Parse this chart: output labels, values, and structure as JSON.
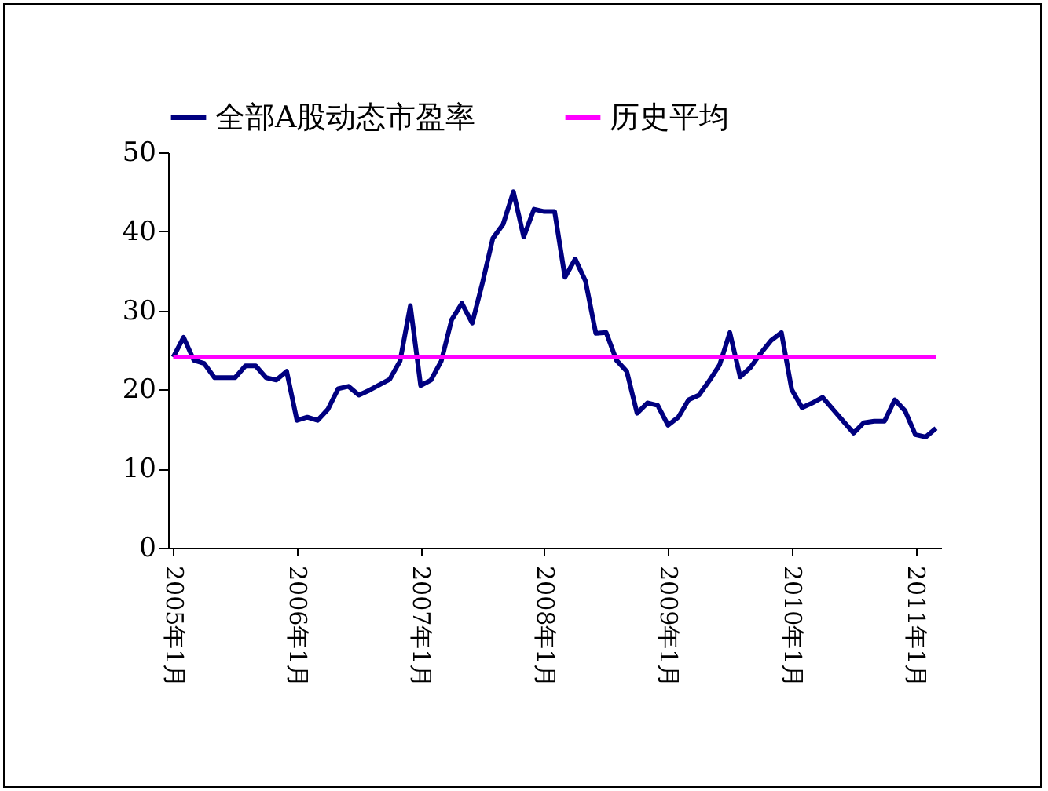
{
  "chart_data": {
    "type": "line",
    "categories": [
      "2005年1月",
      null,
      null,
      null,
      null,
      null,
      null,
      null,
      null,
      null,
      null,
      null,
      "2006年1月",
      null,
      null,
      null,
      null,
      null,
      null,
      null,
      null,
      null,
      null,
      null,
      "2007年1月",
      null,
      null,
      null,
      null,
      null,
      null,
      null,
      null,
      null,
      null,
      null,
      "2008年1月",
      null,
      null,
      null,
      null,
      null,
      null,
      null,
      null,
      null,
      null,
      null,
      "2009年1月",
      null,
      null,
      null,
      null,
      null,
      null,
      null,
      null,
      null,
      null,
      null,
      "2010年1月",
      null,
      null,
      null,
      null,
      null,
      null,
      null,
      null,
      null,
      null,
      null,
      "2011年1月",
      null,
      null
    ],
    "series": [
      {
        "name": "全部A股动态市盈率",
        "color": "#000080",
        "values": [
          24.1,
          26.6,
          23.7,
          23.3,
          21.5,
          21.5,
          21.5,
          23.0,
          23.0,
          21.5,
          21.2,
          22.3,
          16.1,
          16.5,
          16.1,
          17.5,
          20.1,
          20.4,
          19.3,
          19.9,
          20.6,
          21.3,
          23.6,
          30.6,
          20.5,
          21.2,
          23.6,
          28.8,
          30.9,
          28.4,
          33.5,
          39.1,
          40.9,
          45.0,
          39.3,
          42.8,
          42.5,
          42.5,
          34.2,
          36.5,
          33.7,
          27.1,
          27.2,
          23.7,
          22.3,
          17.0,
          18.3,
          18.0,
          15.5,
          16.5,
          18.7,
          19.3,
          21.1,
          23.1,
          27.2,
          21.6,
          22.8,
          24.6,
          26.2,
          27.2,
          20.0,
          17.7,
          18.3,
          19.0,
          17.5,
          16.0,
          14.5,
          15.8,
          16.0,
          16.0,
          18.7,
          17.3,
          14.3,
          14.0,
          15.1
        ]
      },
      {
        "name": "历史平均",
        "color": "#ff00ff",
        "values": [
          24.1,
          24.1,
          24.1,
          24.1,
          24.1,
          24.1,
          24.1,
          24.1,
          24.1,
          24.1,
          24.1,
          24.1,
          24.1,
          24.1,
          24.1,
          24.1,
          24.1,
          24.1,
          24.1,
          24.1,
          24.1,
          24.1,
          24.1,
          24.1,
          24.1,
          24.1,
          24.1,
          24.1,
          24.1,
          24.1,
          24.1,
          24.1,
          24.1,
          24.1,
          24.1,
          24.1,
          24.1,
          24.1,
          24.1,
          24.1,
          24.1,
          24.1,
          24.1,
          24.1,
          24.1,
          24.1,
          24.1,
          24.1,
          24.1,
          24.1,
          24.1,
          24.1,
          24.1,
          24.1,
          24.1,
          24.1,
          24.1,
          24.1,
          24.1,
          24.1,
          24.1,
          24.1,
          24.1,
          24.1,
          24.1,
          24.1,
          24.1,
          24.1,
          24.1,
          24.1,
          24.1,
          24.1,
          24.1,
          24.1,
          24.1
        ]
      }
    ],
    "ylim": [
      0,
      50
    ],
    "yticks": [
      0,
      10,
      20,
      30,
      40,
      50
    ],
    "grid": false,
    "legend": "top",
    "marker": "none",
    "line_style": "solid"
  }
}
